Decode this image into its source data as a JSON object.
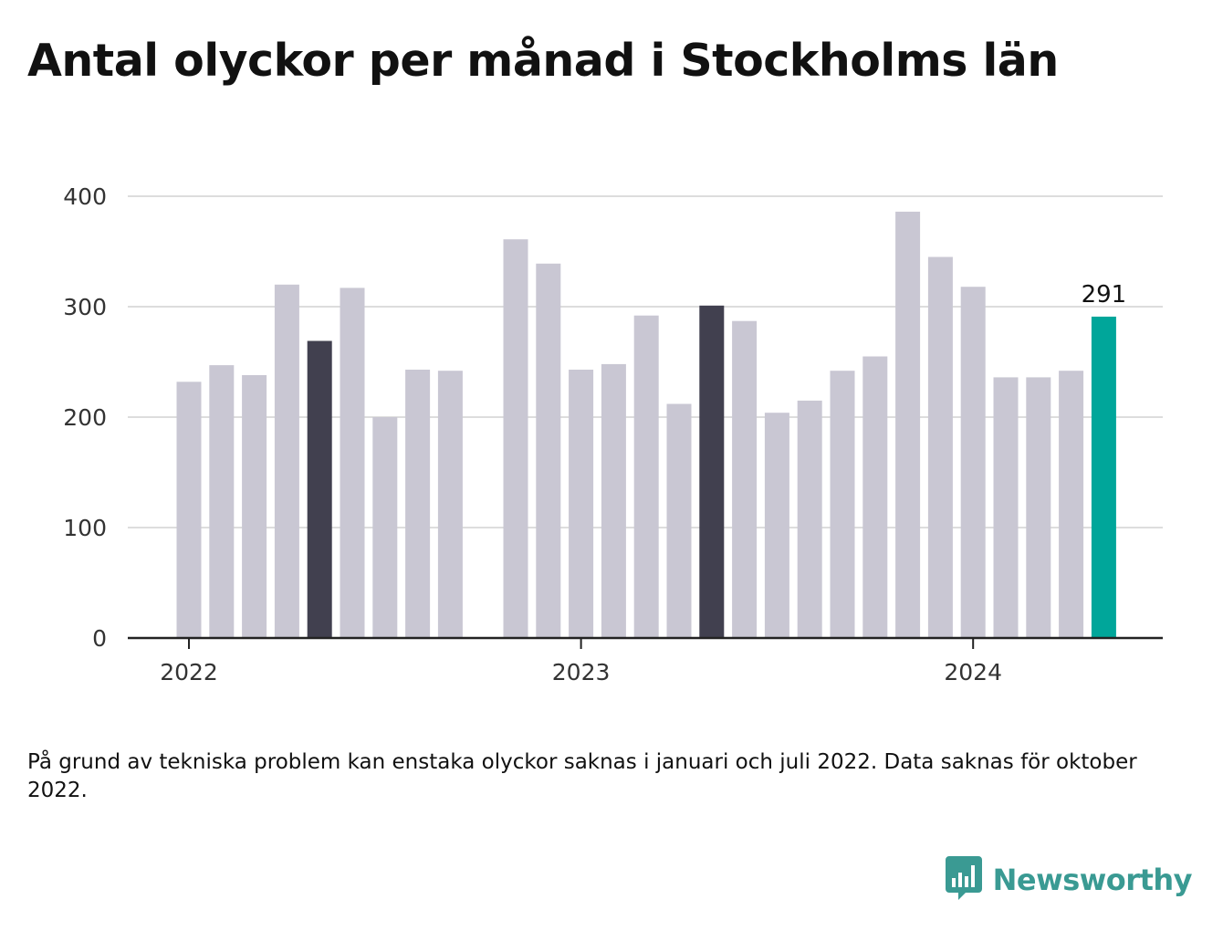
{
  "title": "Antal olyckor per månad i Stockholms län",
  "footnote": "På grund av tekniska problem kan enstaka olyckor saknas i januari och juli 2022. Data saknas för oktober 2022.",
  "brand": {
    "name": "Newsworthy",
    "logo_icon": "bar-chart-speech-bubble-icon"
  },
  "colors": {
    "default": "#c9c7d3",
    "highlight": "#41404f",
    "latest": "#00a69a",
    "grid": "#dddddd",
    "axis": "#222222"
  },
  "chart_data": {
    "type": "bar",
    "title": "Antal olyckor per månad i Stockholms län",
    "xlabel": "",
    "ylabel": "",
    "ylim": [
      0,
      400
    ],
    "yticks": [
      0,
      100,
      200,
      300,
      400
    ],
    "xticks": [
      {
        "label": "2022",
        "month_index": 0
      },
      {
        "label": "2023",
        "month_index": 12
      },
      {
        "label": "2024",
        "month_index": 24
      }
    ],
    "grid": true,
    "data_labels": [
      {
        "month_index": 28,
        "text": "291"
      }
    ],
    "bars": [
      {
        "month_index": 0,
        "value": 232,
        "style": "default"
      },
      {
        "month_index": 1,
        "value": 247,
        "style": "default"
      },
      {
        "month_index": 2,
        "value": 238,
        "style": "default"
      },
      {
        "month_index": 3,
        "value": 320,
        "style": "default"
      },
      {
        "month_index": 4,
        "value": 269,
        "style": "highlight"
      },
      {
        "month_index": 5,
        "value": 317,
        "style": "default"
      },
      {
        "month_index": 6,
        "value": 200,
        "style": "default"
      },
      {
        "month_index": 7,
        "value": 243,
        "style": "default"
      },
      {
        "month_index": 8,
        "value": 242,
        "style": "default"
      },
      {
        "month_index": 10,
        "value": 361,
        "style": "default"
      },
      {
        "month_index": 11,
        "value": 339,
        "style": "default"
      },
      {
        "month_index": 12,
        "value": 243,
        "style": "default"
      },
      {
        "month_index": 13,
        "value": 248,
        "style": "default"
      },
      {
        "month_index": 14,
        "value": 292,
        "style": "default"
      },
      {
        "month_index": 15,
        "value": 212,
        "style": "default"
      },
      {
        "month_index": 16,
        "value": 301,
        "style": "highlight"
      },
      {
        "month_index": 17,
        "value": 287,
        "style": "default"
      },
      {
        "month_index": 18,
        "value": 204,
        "style": "default"
      },
      {
        "month_index": 19,
        "value": 215,
        "style": "default"
      },
      {
        "month_index": 20,
        "value": 242,
        "style": "default"
      },
      {
        "month_index": 21,
        "value": 255,
        "style": "default"
      },
      {
        "month_index": 22,
        "value": 386,
        "style": "default"
      },
      {
        "month_index": 23,
        "value": 345,
        "style": "default"
      },
      {
        "month_index": 24,
        "value": 318,
        "style": "default"
      },
      {
        "month_index": 25,
        "value": 236,
        "style": "default"
      },
      {
        "month_index": 26,
        "value": 236,
        "style": "default"
      },
      {
        "month_index": 27,
        "value": 242,
        "style": "default"
      },
      {
        "month_index": 28,
        "value": 291,
        "style": "latest"
      }
    ]
  }
}
